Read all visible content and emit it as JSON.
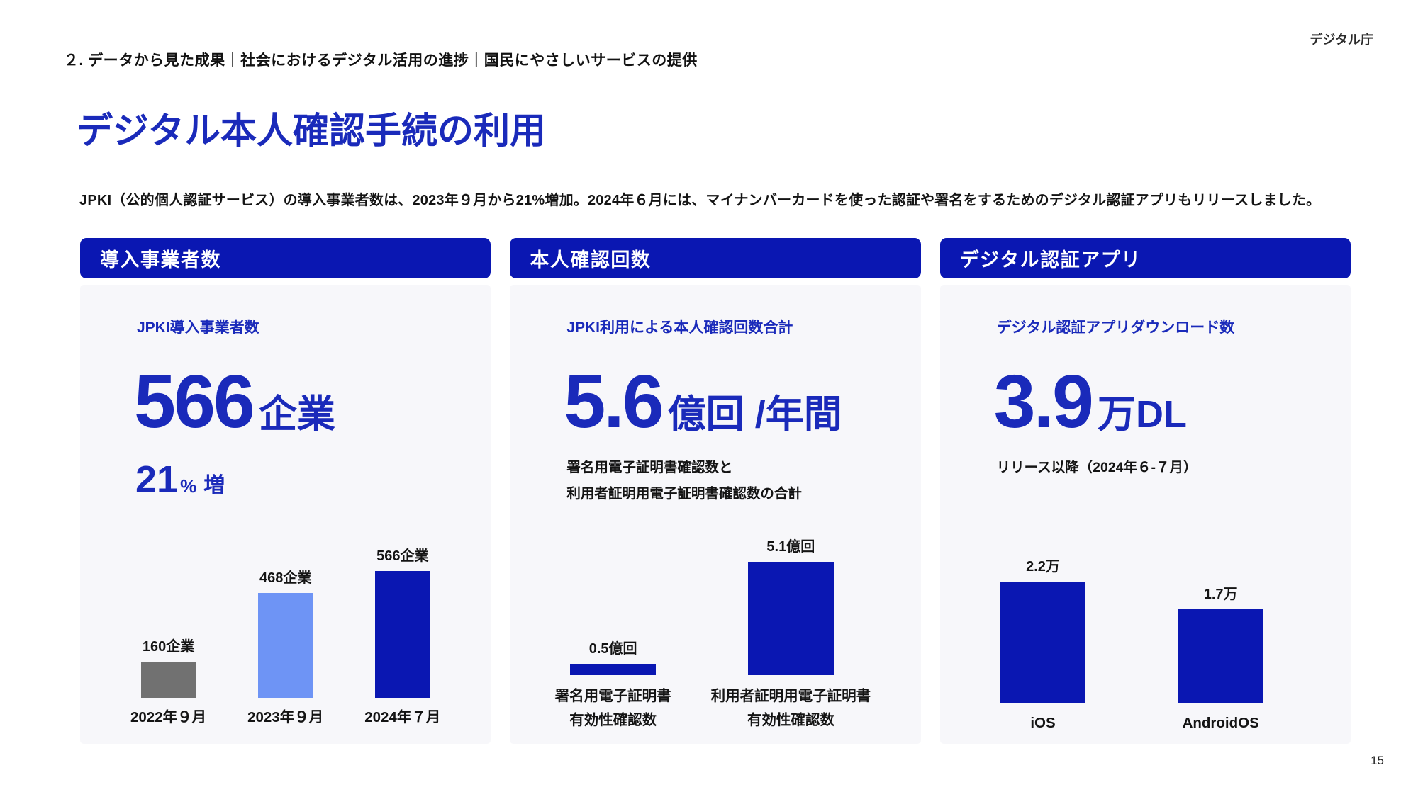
{
  "page": {
    "agency_label": "デジタル庁",
    "breadcrumb": "２. データから見た成果｜社会におけるデジタル活用の進捗｜国民にやさしいサービスの提供",
    "title": "デジタル本人確認手続の利用",
    "description": "JPKI（公的個人認証サービス）の導入事業者数は、2023年９月から21%増加。2024年６月には、マイナンバーカードを使った認証や署名をするためのデジタル認証アプリもリリースしました。",
    "page_number": "15"
  },
  "colors": {
    "brand_blue": "#0A17B2",
    "text_blue": "#1A2ABA",
    "light_blue": "#6E94F5",
    "gray_bar": "#717171",
    "card_bg": "#F7F7FA"
  },
  "cards": [
    {
      "header": "導入事業者数",
      "subtitle": "JPKI導入事業者数",
      "kpi_value": "566",
      "kpi_unit": "企業",
      "kpi2_value": "21",
      "kpi2_unit": "%",
      "kpi2_suffix": "増"
    },
    {
      "header": "本人確認回数",
      "subtitle": "JPKI利用による本人確認回数合計",
      "kpi_value": "5.6",
      "kpi_unit": "億回 /年間",
      "note": "署名用電子証明書確認数と\n利用者証明用電子証明書確認数の合計"
    },
    {
      "header": "デジタル認証アプリ",
      "subtitle": "デジタル認証アプリダウンロード数",
      "kpi_value": "3.9",
      "kpi_unit": "万DL",
      "note": "リリース以降（2024年６-７月）"
    }
  ],
  "chart_data": [
    {
      "type": "bar",
      "title": "JPKI導入事業者数",
      "categories": [
        "2022年９月",
        "2023年９月",
        "2024年７月"
      ],
      "values": [
        160,
        468,
        566
      ],
      "value_labels": [
        "160企業",
        "468企業",
        "566企業"
      ],
      "bar_colors": [
        "#717171",
        "#6E94F5",
        "#0A17B2"
      ],
      "unit": "企業",
      "ylim": [
        0,
        600
      ],
      "grid": false,
      "legend": false
    },
    {
      "type": "bar",
      "title": "JPKI利用による本人確認回数合計",
      "categories": [
        "署名用電子証明書\n有効性確認数",
        "利用者証明用電子証明書\n有効性確認数"
      ],
      "values": [
        0.5,
        5.1
      ],
      "value_labels": [
        "0.5億回",
        "5.1億回"
      ],
      "bar_colors": [
        "#0A17B2",
        "#0A17B2"
      ],
      "unit": "億回",
      "ylim": [
        0,
        5.5
      ],
      "grid": false,
      "legend": false
    },
    {
      "type": "bar",
      "title": "デジタル認証アプリダウンロード数",
      "categories": [
        "iOS",
        "AndroidOS"
      ],
      "values": [
        2.2,
        1.7
      ],
      "value_labels": [
        "2.2万",
        "1.7万"
      ],
      "bar_colors": [
        "#0A17B2",
        "#0A17B2"
      ],
      "unit": "万",
      "ylim": [
        0,
        2.5
      ],
      "grid": false,
      "legend": false
    }
  ]
}
